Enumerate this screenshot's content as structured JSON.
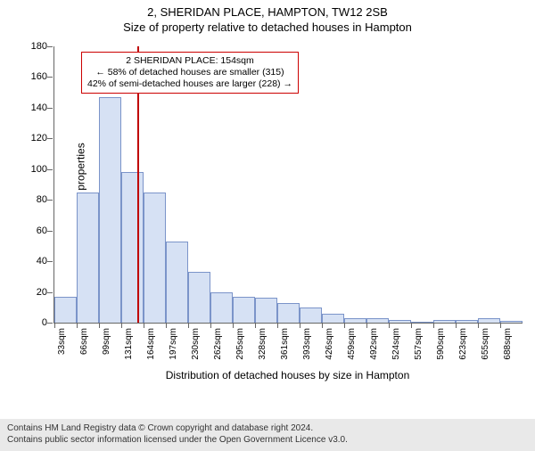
{
  "title": "2, SHERIDAN PLACE, HAMPTON, TW12 2SB",
  "subtitle": "Size of property relative to detached houses in Hampton",
  "ylabel": "Number of detached properties",
  "xlabel": "Distribution of detached houses by size in Hampton",
  "footer_line1": "Contains HM Land Registry data © Crown copyright and database right 2024.",
  "footer_line2": "Contains public sector information licensed under the Open Government Licence v3.0.",
  "chart": {
    "type": "histogram",
    "ylim": [
      0,
      180
    ],
    "ytick_step": 20,
    "bar_fill": "#d6e1f4",
    "bar_stroke": "#7b94c9",
    "background": "#ffffff",
    "marker_color": "#c00000",
    "marker_x": 154,
    "xstep": 32.7,
    "xstart": 33,
    "categories": [
      "33sqm",
      "66sqm",
      "99sqm",
      "131sqm",
      "164sqm",
      "197sqm",
      "230sqm",
      "262sqm",
      "295sqm",
      "328sqm",
      "361sqm",
      "393sqm",
      "426sqm",
      "459sqm",
      "492sqm",
      "524sqm",
      "557sqm",
      "590sqm",
      "623sqm",
      "655sqm",
      "688sqm"
    ],
    "values": [
      17,
      85,
      147,
      98,
      85,
      53,
      33,
      20,
      17,
      16,
      13,
      10,
      6,
      3,
      3,
      2,
      0,
      2,
      2,
      3,
      1
    ],
    "annotation": {
      "line1": "2 SHERIDAN PLACE: 154sqm",
      "line2": "← 58% of detached houses are smaller (315)",
      "line3": "42% of semi-detached houses are larger (228) →"
    }
  }
}
